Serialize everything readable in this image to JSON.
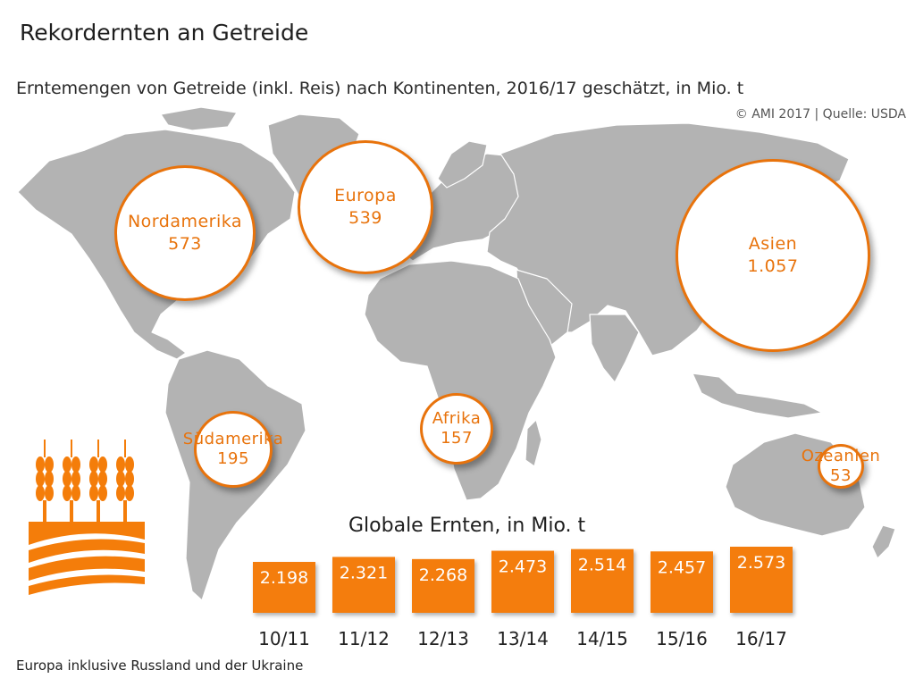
{
  "header": {
    "title": "Rekordernten an Getreide",
    "subtitle": "Erntemengen von Getreide (inkl. Reis) nach Kontinenten, 2016/17 geschätzt, in Mio. t",
    "credit": "© AMI 2017 | Quelle: USDA"
  },
  "footnote": "Europa inklusive Russland und der Ukraine",
  "colors": {
    "accent": "#e8730c",
    "land": "#b3b3b3",
    "bar": "#f47d0a"
  },
  "continents": [
    {
      "name": "Nordamerika",
      "value": "573"
    },
    {
      "name": "Europa",
      "value": "539"
    },
    {
      "name": "Asien",
      "value": "1.057"
    },
    {
      "name": "Südamerika",
      "value": "195"
    },
    {
      "name": "Afrika",
      "value": "157"
    },
    {
      "name": "Ozeanien",
      "value": "53"
    }
  ],
  "chart_data": [
    {
      "type": "bubble",
      "title": "Erntemengen von Getreide (inkl. Reis) nach Kontinenten, 2016/17 geschätzt, in Mio. t",
      "categories": [
        "Nordamerika",
        "Europa",
        "Asien",
        "Südamerika",
        "Afrika",
        "Ozeanien"
      ],
      "values": [
        573,
        539,
        1057,
        195,
        157,
        53
      ]
    },
    {
      "type": "bar",
      "title": "Globale Ernten, in Mio. t",
      "categories": [
        "10/11",
        "11/12",
        "12/13",
        "13/14",
        "14/15",
        "15/16",
        "16/17"
      ],
      "values": [
        2198,
        2321,
        2268,
        2473,
        2514,
        2457,
        2573
      ],
      "labels": [
        "2.198",
        "2.321",
        "2.268",
        "2.473",
        "2.514",
        "2.457",
        "2.573"
      ]
    }
  ]
}
